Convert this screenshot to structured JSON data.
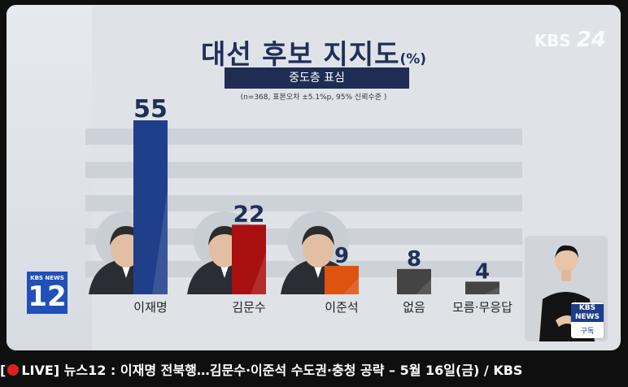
{
  "title": "대선 후보 지지도",
  "title_unit": "(%)",
  "subtitle": "중도층 표심",
  "note": "(n=368,  표본오차 ±5.1%p, 95% 신뢰수준 )",
  "watermark": {
    "text": "KBS",
    "number": "24"
  },
  "corner_badge": {
    "top": "KBS NEWS",
    "number": "12"
  },
  "subscribe_badge": {
    "logo": "KBS NEWS",
    "label": "구독"
  },
  "ticker": "LIVE] 뉴스12 : 이재명 전북행…김문수·이준석 수도권·충청 공략 – 5월 16일(금) / KBS",
  "ticker_prefix": "[",
  "colors": {
    "lee": "#1f3f8a",
    "kim": "#a91010",
    "lee_js": "#e0520f",
    "none": "#444444",
    "unknown": "#444444",
    "title": "#1f2f57"
  },
  "chart_data": {
    "type": "bar",
    "title": "대선 후보 지지도",
    "categories": [
      "이재명",
      "김문수",
      "이준석",
      "없음",
      "모름·무응답"
    ],
    "values": [
      55,
      22,
      9,
      8,
      4
    ],
    "unit": "%",
    "grid": true,
    "ylim": [
      0,
      60
    ]
  }
}
